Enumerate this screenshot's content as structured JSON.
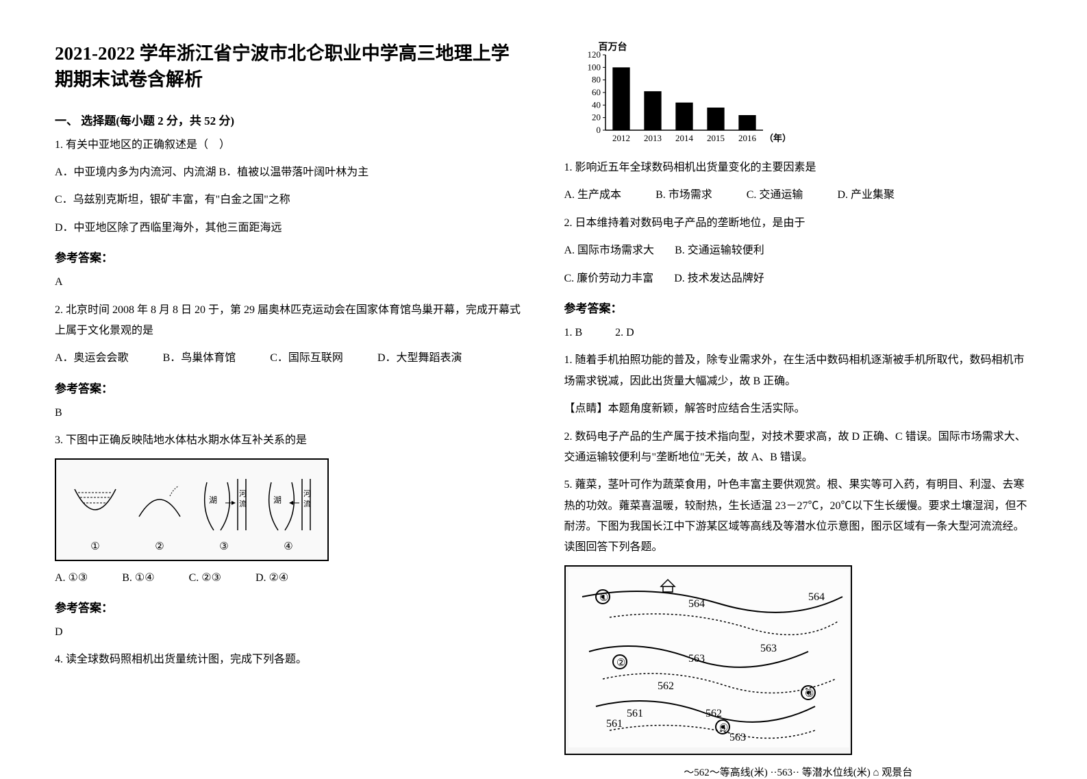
{
  "title": "2021-2022 学年浙江省宁波市北仑职业中学高三地理上学期期末试卷含解析",
  "section1_header": "一、 选择题(每小题 2 分，共 52 分)",
  "q1": {
    "stem": "1. 有关中亚地区的正确叙述是（　）",
    "optA": "A．中亚境内多为内流河、内流湖",
    "optB": "B．植被以温带落叶阔叶林为主",
    "optC": "C．乌兹别克斯坦，银矿丰富，有\"白金之国\"之称",
    "optD": "D．中亚地区除了西临里海外，其他三面距海远",
    "ans_label": "参考答案：",
    "ans": "A"
  },
  "q2": {
    "stem": "2. 北京时间 2008 年 8 月 8 日 20 于，第 29 届奥林匹克运动会在国家体育馆鸟巢开幕，完成开幕式上属于文化景观的是",
    "optA": "A．奥运会会歌",
    "optB": "B．鸟巢体育馆",
    "optC": "C．国际互联网",
    "optD": "D．大型舞蹈表演",
    "ans_label": "参考答案：",
    "ans": "B"
  },
  "q3": {
    "stem": "3. 下图中正确反映陆地水体枯水期水体互补关系的是",
    "sub_labels": [
      "①",
      "②",
      "③",
      "④"
    ],
    "sub_captions": [
      "",
      "",
      "湖 河流",
      "湖 河流"
    ],
    "optA": "A. ①③",
    "optB": "B. ①④",
    "optC": "C. ②③",
    "optD": "D. ②④",
    "ans_label": "参考答案：",
    "ans": "D"
  },
  "q4": {
    "stem": "4. 读全球数码照相机出货量统计图，完成下列各题。",
    "chart": {
      "ylabel": "百万台",
      "ymax": 120,
      "ytick_step": 20,
      "categories": [
        "2012",
        "2013",
        "2014",
        "2015",
        "2016"
      ],
      "xlabel_suffix": "（年）",
      "values": [
        100,
        62,
        44,
        36,
        24
      ],
      "bar_color": "#000000",
      "axis_color": "#000000",
      "font_size": 13
    },
    "sub1": {
      "stem": "1.  影响近五年全球数码相机出货量变化的主要因素是",
      "optA": "A.  生产成本",
      "optB": "B.  市场需求",
      "optC": "C.  交通运输",
      "optD": "D.  产业集聚"
    },
    "sub2": {
      "stem": "2.  日本维持着对数码电子产品的垄断地位，是由于",
      "optA": "A.  国际市场需求大",
      "optB": "B.  交通运输较便利",
      "optC": "C.  廉价劳动力丰富",
      "optD": "D.  技术发达品牌好"
    },
    "ans_label": "参考答案：",
    "ans_line": "1.  B　　　2.  D",
    "explain1": "1.  随着手机拍照功能的普及，除专业需求外，在生活中数码相机逐渐被手机所取代，数码相机市场需求锐减，因此出货量大幅减少，故 B 正确。",
    "explain_note": "【点睛】本题角度新颖，解答时应结合生活实际。",
    "explain2": "2.  数码电子产品的生产属于技术指向型，对技术要求高，故 D 正确、C 错误。国际市场需求大、交通运输较便利与\"垄断地位\"无关，故 A、B 错误。"
  },
  "q5": {
    "stem": "5. 蕹菜，茎叶可作为蔬菜食用，叶色丰富主要供观赏。根、果实等可入药，有明目、利湿、去寒热的功效。蕹菜喜温暖，较耐热，生长适温 23－27℃，20℃以下生长缓慢。要求土壤湿润，但不耐涝。下图为我国长江中下游某区域等高线及等潜水位示意图，图示区域有一条大型河流流经。读图回答下列各题。",
    "map_caption": "〜562〜等高线(米) ··563·· 等潜水位线(米) ⌂ 观景台",
    "map_labels": [
      "①",
      "②",
      "③",
      "④"
    ],
    "map_values": [
      "564",
      "564",
      "563",
      "563",
      "562",
      "562",
      "561",
      "561",
      "562",
      "563"
    ]
  }
}
